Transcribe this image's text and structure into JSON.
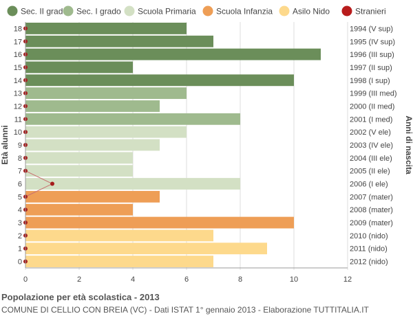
{
  "chart_data": {
    "type": "bar",
    "orientation": "horizontal",
    "ylabel_left": "Età alunni",
    "ylabel_right": "Anni di nascita",
    "xlim": [
      0,
      12
    ],
    "xticks": [
      0,
      2,
      4,
      6,
      8,
      10,
      12
    ],
    "grid": true,
    "legend_position": "top",
    "legend": [
      {
        "name": "Sec. II grado",
        "color": "#6b8e5a",
        "kind": "bar"
      },
      {
        "name": "Sec. I grado",
        "color": "#9fba8e",
        "kind": "bar"
      },
      {
        "name": "Scuola Primaria",
        "color": "#d3e0c4",
        "kind": "bar"
      },
      {
        "name": "Scuola Infanzia",
        "color": "#ee9e56",
        "kind": "bar"
      },
      {
        "name": "Asilo Nido",
        "color": "#fdd98c",
        "kind": "bar"
      },
      {
        "name": "Stranieri",
        "color": "#b81c1c",
        "kind": "dot"
      }
    ],
    "rows": [
      {
        "age": "18",
        "birth": "1994 (V sup)",
        "value": 6,
        "stranieri": 0,
        "series": 0
      },
      {
        "age": "17",
        "birth": "1995 (IV sup)",
        "value": 7,
        "stranieri": 0,
        "series": 0
      },
      {
        "age": "16",
        "birth": "1996 (III sup)",
        "value": 11,
        "stranieri": 0,
        "series": 0
      },
      {
        "age": "15",
        "birth": "1997 (II sup)",
        "value": 4,
        "stranieri": 0,
        "series": 0
      },
      {
        "age": "14",
        "birth": "1998 (I sup)",
        "value": 10,
        "stranieri": 0,
        "series": 0
      },
      {
        "age": "13",
        "birth": "1999 (III med)",
        "value": 6,
        "stranieri": 0,
        "series": 1
      },
      {
        "age": "12",
        "birth": "2000 (II med)",
        "value": 5,
        "stranieri": 0,
        "series": 1
      },
      {
        "age": "11",
        "birth": "2001 (I med)",
        "value": 8,
        "stranieri": 0,
        "series": 1
      },
      {
        "age": "10",
        "birth": "2002 (V ele)",
        "value": 6,
        "stranieri": 0,
        "series": 2
      },
      {
        "age": "9",
        "birth": "2003 (IV ele)",
        "value": 5,
        "stranieri": 0,
        "series": 2
      },
      {
        "age": "8",
        "birth": "2004 (III ele)",
        "value": 4,
        "stranieri": 0,
        "series": 2
      },
      {
        "age": "7",
        "birth": "2005 (II ele)",
        "value": 4,
        "stranieri": 0,
        "series": 2
      },
      {
        "age": "6",
        "birth": "2006 (I ele)",
        "value": 8,
        "stranieri": 1,
        "series": 2
      },
      {
        "age": "5",
        "birth": "2007 (mater)",
        "value": 5,
        "stranieri": 0,
        "series": 3
      },
      {
        "age": "4",
        "birth": "2008 (mater)",
        "value": 4,
        "stranieri": 0,
        "series": 3
      },
      {
        "age": "3",
        "birth": "2009 (mater)",
        "value": 10,
        "stranieri": 0,
        "series": 3
      },
      {
        "age": "2",
        "birth": "2010 (nido)",
        "value": 7,
        "stranieri": 0,
        "series": 4
      },
      {
        "age": "1",
        "birth": "2011 (nido)",
        "value": 9,
        "stranieri": 0,
        "series": 4
      },
      {
        "age": "0",
        "birth": "2012 (nido)",
        "value": 7,
        "stranieri": 0,
        "series": 4
      }
    ]
  },
  "footer": {
    "title": "Popolazione per età scolastica - 2013",
    "subtitle": "COMUNE DI CELLIO CON BREIA (VC) - Dati ISTAT 1° gennaio 2013 - Elaborazione TUTTITALIA.IT"
  }
}
